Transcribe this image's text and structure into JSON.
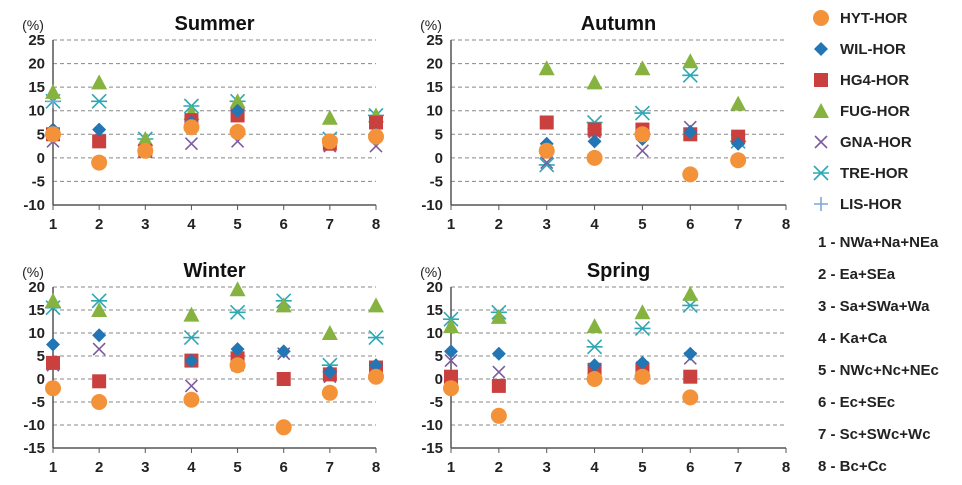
{
  "chart_data": [
    {
      "type": "scatter",
      "title": "Summer",
      "ylabel": "(%)",
      "xlim": [
        1,
        8
      ],
      "ylim": [
        -10,
        25
      ],
      "yticks": [
        -10,
        -5,
        0,
        5,
        10,
        15,
        20,
        25
      ],
      "x": [
        1,
        2,
        3,
        4,
        5,
        6,
        7,
        8
      ],
      "grid": "horizontal-dashed",
      "series": [
        {
          "name": "HYT-HOR",
          "values": [
            5,
            -1,
            1.5,
            6.5,
            5.5,
            null,
            3.5,
            4.5
          ]
        },
        {
          "name": "WIL-HOR",
          "values": [
            6,
            6,
            1.5,
            7.5,
            10,
            null,
            3,
            5
          ]
        },
        {
          "name": "HG4-HOR",
          "values": [
            5,
            3.5,
            1.5,
            8,
            9,
            null,
            3,
            7.5
          ]
        },
        {
          "name": "FUG-HOR",
          "values": [
            14,
            16,
            4,
            9.5,
            12,
            null,
            8.5,
            9
          ]
        },
        {
          "name": "GNA-HOR",
          "values": [
            3.5,
            3.5,
            1.5,
            3,
            3.5,
            null,
            2.5,
            2.5
          ]
        },
        {
          "name": "TRE-HOR",
          "values": [
            12,
            12,
            4,
            11,
            12,
            null,
            4,
            9
          ]
        },
        {
          "name": "LIS-HOR",
          "values": [
            12,
            null,
            null,
            null,
            null,
            null,
            null,
            null
          ]
        }
      ]
    },
    {
      "type": "scatter",
      "title": "Autumn",
      "ylabel": "(%)",
      "xlim": [
        1,
        8
      ],
      "ylim": [
        -10,
        25
      ],
      "yticks": [
        -10,
        -5,
        0,
        5,
        10,
        15,
        20,
        25
      ],
      "x": [
        1,
        2,
        3,
        4,
        5,
        6,
        7,
        8
      ],
      "grid": "horizontal-dashed",
      "series": [
        {
          "name": "HYT-HOR",
          "values": [
            null,
            null,
            1.5,
            0,
            5,
            -3.5,
            -0.5,
            null
          ]
        },
        {
          "name": "WIL-HOR",
          "values": [
            null,
            null,
            3,
            3.5,
            4,
            5.5,
            3,
            null
          ]
        },
        {
          "name": "HG4-HOR",
          "values": [
            null,
            null,
            7.5,
            6,
            6,
            5,
            4.5,
            null
          ]
        },
        {
          "name": "FUG-HOR",
          "values": [
            null,
            null,
            19,
            16,
            19,
            20.5,
            11.5,
            null
          ]
        },
        {
          "name": "GNA-HOR",
          "values": [
            null,
            null,
            -1,
            5.5,
            1.5,
            6.5,
            4,
            null
          ]
        },
        {
          "name": "TRE-HOR",
          "values": [
            null,
            null,
            -1.5,
            7.5,
            9.5,
            17.5,
            3.5,
            null
          ]
        },
        {
          "name": "LIS-HOR",
          "values": [
            null,
            null,
            null,
            null,
            null,
            null,
            null,
            null
          ]
        }
      ]
    },
    {
      "type": "scatter",
      "title": "Winter",
      "ylabel": "(%)",
      "xlim": [
        1,
        8
      ],
      "ylim": [
        -15,
        20
      ],
      "yticks": [
        -15,
        -10,
        -5,
        0,
        5,
        10,
        15,
        20
      ],
      "x": [
        1,
        2,
        3,
        4,
        5,
        6,
        7,
        8
      ],
      "grid": "horizontal-dashed",
      "series": [
        {
          "name": "HYT-HOR",
          "values": [
            -2,
            -5,
            null,
            -4.5,
            3,
            -10.5,
            -3,
            0.5
          ]
        },
        {
          "name": "WIL-HOR",
          "values": [
            7.5,
            9.5,
            null,
            4,
            6.5,
            6,
            1.5,
            3
          ]
        },
        {
          "name": "HG4-HOR",
          "values": [
            3.5,
            -0.5,
            null,
            4,
            4.5,
            0,
            1,
            2.5
          ]
        },
        {
          "name": "FUG-HOR",
          "values": [
            17,
            15,
            null,
            14,
            19.5,
            16,
            10,
            16
          ]
        },
        {
          "name": "GNA-HOR",
          "values": [
            3,
            6.5,
            null,
            -1.5,
            3,
            5.5,
            0.5,
            1
          ]
        },
        {
          "name": "TRE-HOR",
          "values": [
            15.5,
            17,
            null,
            9,
            14.5,
            17,
            3,
            9
          ]
        },
        {
          "name": "LIS-HOR",
          "values": [
            null,
            null,
            null,
            null,
            null,
            null,
            null,
            null
          ]
        }
      ]
    },
    {
      "type": "scatter",
      "title": "Spring",
      "ylabel": "(%)",
      "xlim": [
        1,
        8
      ],
      "ylim": [
        -15,
        20
      ],
      "yticks": [
        -15,
        -10,
        -5,
        0,
        5,
        10,
        15,
        20
      ],
      "x": [
        1,
        2,
        3,
        4,
        5,
        6,
        7,
        8
      ],
      "grid": "horizontal-dashed",
      "series": [
        {
          "name": "HYT-HOR",
          "values": [
            -2,
            -8,
            null,
            0,
            0.5,
            -4,
            null,
            null
          ]
        },
        {
          "name": "WIL-HOR",
          "values": [
            6,
            5.5,
            null,
            3,
            3.5,
            5.5,
            null,
            null
          ]
        },
        {
          "name": "HG4-HOR",
          "values": [
            0.5,
            -1.5,
            null,
            2,
            2,
            0.5,
            null,
            null
          ]
        },
        {
          "name": "FUG-HOR",
          "values": [
            11.5,
            13.5,
            null,
            11.5,
            14.5,
            18.5,
            null,
            null
          ]
        },
        {
          "name": "GNA-HOR",
          "values": [
            4,
            1.5,
            null,
            1.5,
            2.5,
            4.5,
            null,
            null
          ]
        },
        {
          "name": "TRE-HOR",
          "values": [
            13,
            14.5,
            null,
            7,
            11,
            16,
            null,
            null
          ]
        },
        {
          "name": "LIS-HOR",
          "values": [
            null,
            null,
            null,
            null,
            null,
            null,
            null,
            null
          ]
        }
      ]
    }
  ],
  "legend": {
    "placement": "right",
    "items": [
      {
        "name": "HYT-HOR",
        "marker": "circle",
        "color": "#F4923A"
      },
      {
        "name": "WIL-HOR",
        "marker": "diamond",
        "color": "#2276B3"
      },
      {
        "name": "HG4-HOR",
        "marker": "square",
        "color": "#C9403F"
      },
      {
        "name": "FUG-HOR",
        "marker": "triangle",
        "color": "#86B340"
      },
      {
        "name": "GNA-HOR",
        "marker": "x",
        "color": "#7E5B9E"
      },
      {
        "name": "TRE-HOR",
        "marker": "asterisk",
        "color": "#2FA8B5"
      },
      {
        "name": "LIS-HOR",
        "marker": "plus",
        "color": "#7FA6D6"
      }
    ]
  },
  "category_key": [
    "1 - NWa+Na+NEa",
    "2 - Ea+SEa",
    "3 - Sa+SWa+Wa",
    "4 - Ka+Ca",
    "5 - NWc+Nc+NEc",
    "6 - Ec+SEc",
    "7 - Sc+SWc+Wc",
    "8 - Bc+Cc"
  ]
}
